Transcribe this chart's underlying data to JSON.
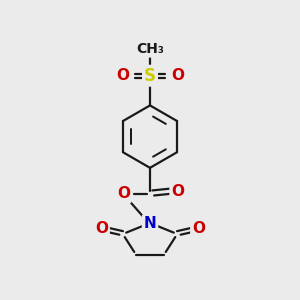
{
  "bg_color": "#ebebeb",
  "bond_color": "#1a1a1a",
  "bond_width": 1.6,
  "atom_colors": {
    "O": "#cc0000",
    "N": "#0000cc",
    "S": "#cccc00",
    "C": "#1a1a1a"
  }
}
